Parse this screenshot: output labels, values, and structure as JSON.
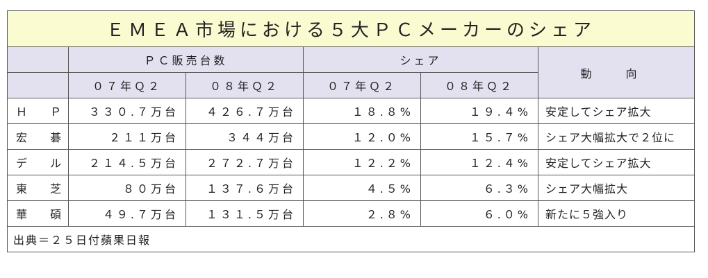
{
  "title": "ＥＭＥＡ市場における５大ＰＣメーカーのシェア",
  "header": {
    "sales_group": "ＰＣ販売台数",
    "share_group": "シェア",
    "trend": "動 向",
    "period_07": "０７年Ｑ２",
    "period_08": "０８年Ｑ２"
  },
  "rows": [
    {
      "name": "Ｈ Ｐ",
      "sales_07": "３３０.７万台",
      "sales_08": "４２６.７万台",
      "share_07": "１８.８%",
      "share_08": "１９.４%",
      "trend": "安定してシェア拡大"
    },
    {
      "name": "宏 碁",
      "sales_07": "２１１万台",
      "sales_08": "３４４万台",
      "share_07": "１２.０%",
      "share_08": "１５.７%",
      "trend": "シェア大幅拡大で２位に"
    },
    {
      "name": "デ ル",
      "sales_07": "２１４.５万台",
      "sales_08": "２７２.７万台",
      "share_07": "１２.２%",
      "share_08": "１２.４%",
      "trend": "安定してシェア拡大"
    },
    {
      "name": "東 芝",
      "sales_07": "８０万台",
      "sales_08": "１３７.６万台",
      "share_07": "４.５%",
      "share_08": "６.３%",
      "trend": "シェア大幅拡大"
    },
    {
      "name": "華 碩",
      "sales_07": "４９.７万台",
      "sales_08": "１３１.５万台",
      "share_07": "２.８%",
      "share_08": "６.０%",
      "trend": "新たに５強入り"
    }
  ],
  "source": "出典＝２５日付蘋果日報"
}
